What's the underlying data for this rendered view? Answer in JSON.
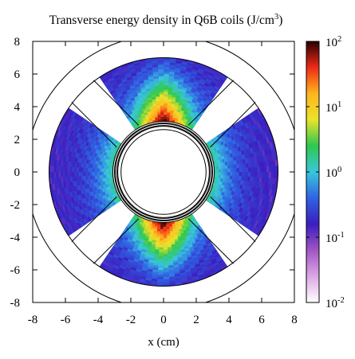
{
  "chart_data": {
    "type": "heatmap",
    "title": "Transverse energy density in Q6B coils (J/cm",
    "title_superscript": "3",
    "title_close": ")",
    "xlabel": "x (cm)",
    "ylabel": "",
    "xlim": [
      -8,
      8
    ],
    "ylim": [
      -8,
      8
    ],
    "x_ticks": [
      "-8",
      "-6",
      "-4",
      "-2",
      "0",
      "2",
      "4",
      "6",
      "8"
    ],
    "y_ticks": [
      "8",
      "6",
      "4",
      "2",
      "0",
      "-2",
      "-4",
      "-6",
      "-8"
    ],
    "x_tick_values": [
      -8,
      -6,
      -4,
      -2,
      0,
      2,
      4,
      6,
      8
    ],
    "y_tick_values": [
      8,
      6,
      4,
      2,
      0,
      -2,
      -4,
      -6,
      -8
    ],
    "colorbar": {
      "scale": "log",
      "range": [
        0.01,
        100
      ],
      "tick_labels": [
        {
          "base": "10",
          "exp": "2",
          "value": 100
        },
        {
          "base": "10",
          "exp": "1",
          "value": 10
        },
        {
          "base": "10",
          "exp": "0",
          "value": 1
        },
        {
          "base": "10",
          "exp": "-1",
          "value": 0.1
        },
        {
          "base": "10",
          "exp": "-2",
          "value": 0.01
        }
      ],
      "colors": [
        "#ffffff",
        "#dba8e4",
        "#a255c4",
        "#3a1ec0",
        "#2f63e3",
        "#39c7dc",
        "#2dc84e",
        "#e9e32c",
        "#ffb51e",
        "#ef2a16",
        "#2a0000"
      ]
    },
    "geometry": {
      "bore_radius_cm": 2.6,
      "coil_inner_radius_cm": 3.1,
      "coil_outer_radius_cm": 7.0,
      "outer_circle_radius_cm": 8.4,
      "coil_half_angle_deg": 34,
      "coil_center_angles_deg": [
        0,
        90,
        180,
        270
      ]
    },
    "peak_value_approx": 60,
    "min_value_approx": 0.1
  }
}
